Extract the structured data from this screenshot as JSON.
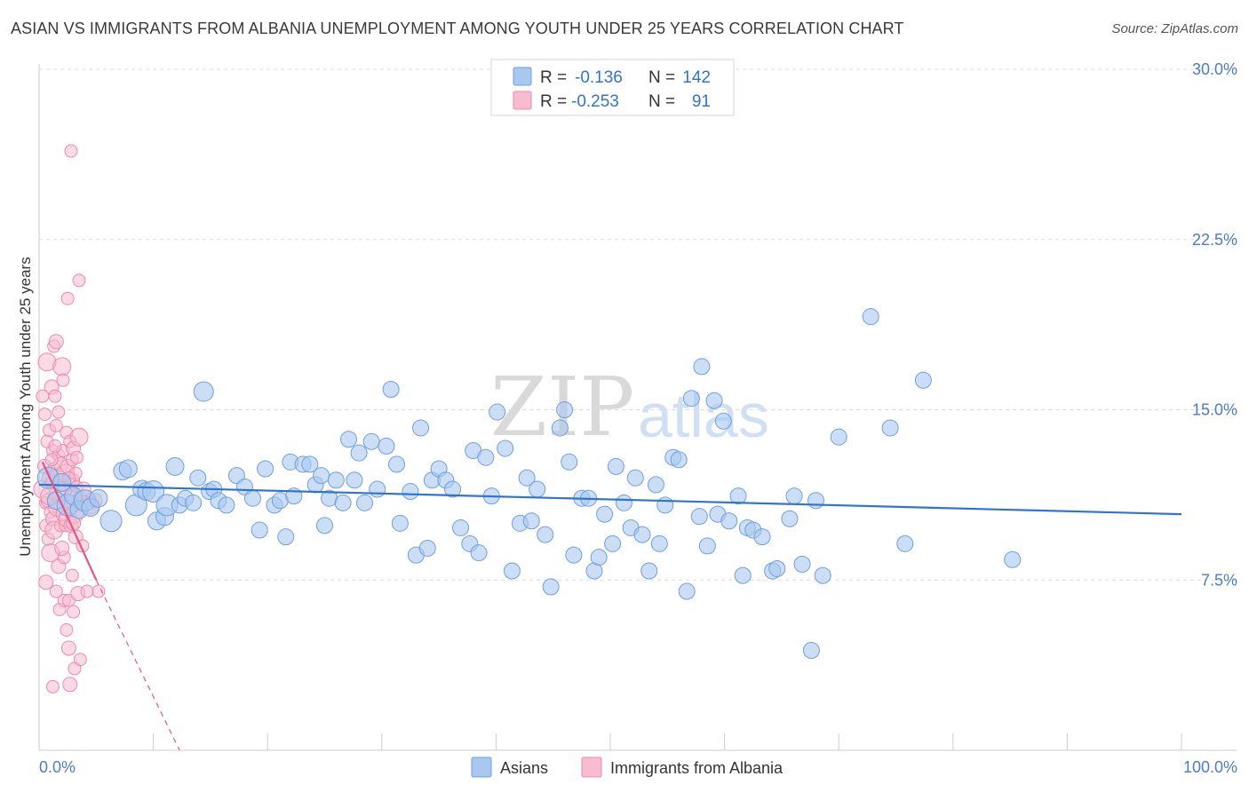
{
  "title": "ASIAN VS IMMIGRANTS FROM ALBANIA UNEMPLOYMENT AMONG YOUTH UNDER 25 YEARS CORRELATION CHART",
  "source": "Source: ZipAtlas.com",
  "watermark": {
    "zip": "ZIP",
    "atlas": "atlas"
  },
  "colors": {
    "asians_fill": "#a9c8f0",
    "asians_stroke": "#6e9fe0",
    "asians_line": "#2f74d0",
    "albania_fill": "#f8bcd0",
    "albania_stroke": "#ec8aaa",
    "albania_line": "#e0577f",
    "grid": "#dddddd",
    "label": "#4a7cc9"
  },
  "legend": {
    "rows": [
      {
        "r_label": "R =",
        "r_value": "-0.136",
        "n_label": "N =",
        "n_value": "142"
      },
      {
        "r_label": "R =",
        "r_value": "-0.253",
        "n_label": "N =",
        "n_value": "91"
      }
    ]
  },
  "bottom_legend": [
    "Asians",
    "Immigrants from Albania"
  ],
  "chart_data": {
    "type": "scatter",
    "title": "ASIAN VS IMMIGRANTS FROM ALBANIA UNEMPLOYMENT AMONG YOUTH UNDER 25 YEARS CORRELATION CHART",
    "xlabel": "",
    "ylabel": "Unemployment Among Youth under 25 years",
    "xlim": [
      0,
      100
    ],
    "ylim": [
      0,
      30
    ],
    "x_tick_labels": [
      "0.0%",
      "100.0%"
    ],
    "y_ticks": [
      7.5,
      15.0,
      22.5,
      30.0
    ],
    "y_tick_labels": [
      "7.5%",
      "15.0%",
      "22.5%",
      "30.0%"
    ],
    "grid": true,
    "series": [
      {
        "name": "Asians",
        "r": -0.136,
        "n": 142,
        "trend": {
          "x0": 0,
          "y0": 11.7,
          "x1": 100,
          "y1": 10.4
        },
        "points": [
          [
            0.8,
            12.0
          ],
          [
            1.5,
            11.0
          ],
          [
            2.0,
            11.8
          ],
          [
            2.5,
            10.8
          ],
          [
            3.0,
            11.2
          ],
          [
            3.5,
            10.6
          ],
          [
            4.0,
            11.0
          ],
          [
            4.5,
            10.7
          ],
          [
            5.2,
            11.1
          ],
          [
            6.3,
            10.1
          ],
          [
            7.3,
            12.3
          ],
          [
            7.8,
            12.4
          ],
          [
            8.5,
            10.8
          ],
          [
            9.0,
            11.5
          ],
          [
            9.4,
            11.4
          ],
          [
            10.0,
            11.4
          ],
          [
            10.3,
            10.1
          ],
          [
            11.0,
            10.3
          ],
          [
            11.2,
            10.8
          ],
          [
            11.9,
            12.5
          ],
          [
            12.3,
            10.8
          ],
          [
            12.8,
            11.1
          ],
          [
            13.5,
            10.9
          ],
          [
            13.9,
            12.0
          ],
          [
            14.4,
            15.8
          ],
          [
            14.9,
            11.4
          ],
          [
            15.3,
            11.5
          ],
          [
            15.7,
            11.0
          ],
          [
            16.4,
            10.8
          ],
          [
            17.3,
            12.1
          ],
          [
            18.0,
            11.6
          ],
          [
            18.7,
            11.1
          ],
          [
            19.3,
            9.7
          ],
          [
            19.8,
            12.4
          ],
          [
            20.6,
            10.8
          ],
          [
            21.1,
            11.0
          ],
          [
            21.6,
            9.4
          ],
          [
            22.0,
            12.7
          ],
          [
            22.3,
            11.2
          ],
          [
            23.1,
            12.6
          ],
          [
            23.7,
            12.6
          ],
          [
            24.2,
            11.7
          ],
          [
            24.7,
            12.1
          ],
          [
            25.0,
            9.9
          ],
          [
            25.4,
            11.1
          ],
          [
            26.0,
            11.9
          ],
          [
            26.6,
            10.9
          ],
          [
            27.1,
            13.7
          ],
          [
            27.6,
            11.9
          ],
          [
            28.0,
            13.1
          ],
          [
            28.5,
            10.9
          ],
          [
            29.1,
            13.6
          ],
          [
            29.6,
            11.5
          ],
          [
            30.4,
            13.4
          ],
          [
            30.8,
            15.9
          ],
          [
            31.3,
            12.6
          ],
          [
            31.6,
            10.0
          ],
          [
            32.5,
            11.4
          ],
          [
            33.0,
            8.6
          ],
          [
            33.4,
            14.2
          ],
          [
            34.0,
            8.9
          ],
          [
            34.4,
            11.9
          ],
          [
            35.0,
            12.4
          ],
          [
            35.6,
            11.9
          ],
          [
            36.2,
            11.5
          ],
          [
            36.9,
            9.8
          ],
          [
            37.7,
            9.1
          ],
          [
            38.0,
            13.2
          ],
          [
            38.5,
            8.7
          ],
          [
            39.1,
            12.9
          ],
          [
            39.6,
            11.2
          ],
          [
            40.1,
            14.9
          ],
          [
            40.8,
            13.3
          ],
          [
            41.4,
            7.9
          ],
          [
            42.1,
            10.0
          ],
          [
            42.7,
            12.0
          ],
          [
            43.1,
            10.1
          ],
          [
            43.6,
            11.5
          ],
          [
            44.3,
            9.5
          ],
          [
            44.8,
            7.2
          ],
          [
            45.6,
            14.2
          ],
          [
            46.0,
            15.0
          ],
          [
            46.4,
            12.7
          ],
          [
            46.8,
            8.6
          ],
          [
            47.5,
            11.1
          ],
          [
            48.1,
            11.1
          ],
          [
            48.6,
            7.9
          ],
          [
            49.0,
            8.5
          ],
          [
            49.5,
            10.4
          ],
          [
            50.2,
            9.1
          ],
          [
            50.5,
            12.5
          ],
          [
            51.2,
            10.9
          ],
          [
            51.8,
            9.8
          ],
          [
            52.2,
            12.0
          ],
          [
            52.8,
            9.5
          ],
          [
            53.4,
            7.9
          ],
          [
            54.0,
            11.7
          ],
          [
            54.3,
            9.1
          ],
          [
            54.8,
            10.8
          ],
          [
            55.5,
            12.9
          ],
          [
            56.0,
            12.8
          ],
          [
            56.7,
            7.0
          ],
          [
            57.1,
            15.5
          ],
          [
            57.8,
            10.3
          ],
          [
            58.0,
            16.9
          ],
          [
            58.5,
            9.0
          ],
          [
            59.1,
            15.4
          ],
          [
            59.4,
            10.4
          ],
          [
            59.9,
            14.5
          ],
          [
            60.4,
            10.1
          ],
          [
            61.2,
            11.2
          ],
          [
            61.6,
            7.7
          ],
          [
            62.0,
            9.8
          ],
          [
            62.5,
            9.7
          ],
          [
            63.3,
            9.4
          ],
          [
            64.2,
            7.9
          ],
          [
            64.6,
            8.0
          ],
          [
            65.7,
            10.2
          ],
          [
            66.1,
            11.2
          ],
          [
            66.8,
            8.2
          ],
          [
            67.6,
            4.4
          ],
          [
            68.0,
            11.0
          ],
          [
            68.6,
            7.7
          ],
          [
            70.0,
            13.8
          ],
          [
            72.8,
            19.1
          ],
          [
            74.5,
            14.2
          ],
          [
            75.8,
            9.1
          ],
          [
            77.4,
            16.3
          ],
          [
            85.2,
            8.4
          ]
        ]
      },
      {
        "name": "Immigrants from Albania",
        "r": -0.253,
        "n": 91,
        "trend": {
          "x0": 0.3,
          "y0": 12.7,
          "x1": 5.0,
          "y1": 7.5,
          "dash_x1": 12.3,
          "dash_y1": 0
        },
        "points": [
          [
            0.3,
            11.5
          ],
          [
            0.3,
            15.6
          ],
          [
            0.5,
            14.8
          ],
          [
            0.5,
            12.5
          ],
          [
            0.6,
            10.9
          ],
          [
            0.6,
            9.9
          ],
          [
            0.6,
            7.4
          ],
          [
            0.7,
            17.1
          ],
          [
            0.7,
            13.6
          ],
          [
            0.8,
            11.0
          ],
          [
            0.8,
            9.3
          ],
          [
            0.9,
            14.1
          ],
          [
            0.9,
            12.0
          ],
          [
            1.0,
            10.5
          ],
          [
            1.0,
            8.7
          ],
          [
            1.1,
            16.0
          ],
          [
            1.1,
            11.8
          ],
          [
            1.2,
            13.2
          ],
          [
            1.2,
            10.2
          ],
          [
            1.3,
            17.8
          ],
          [
            1.3,
            12.4
          ],
          [
            1.3,
            9.7
          ],
          [
            1.4,
            15.6
          ],
          [
            1.4,
            11.3
          ],
          [
            1.5,
            18.0
          ],
          [
            1.5,
            14.3
          ],
          [
            1.5,
            7.0
          ],
          [
            1.6,
            12.1
          ],
          [
            1.6,
            10.7
          ],
          [
            1.7,
            13.0
          ],
          [
            1.7,
            8.1
          ],
          [
            1.8,
            11.9
          ],
          [
            1.8,
            6.2
          ],
          [
            1.9,
            12.6
          ],
          [
            1.9,
            9.9
          ],
          [
            2.0,
            16.9
          ],
          [
            2.0,
            11.5
          ],
          [
            2.1,
            16.3
          ],
          [
            2.1,
            13.2
          ],
          [
            2.1,
            10.4
          ],
          [
            2.2,
            8.5
          ],
          [
            2.2,
            6.6
          ],
          [
            2.3,
            12.2
          ],
          [
            2.3,
            9.9
          ],
          [
            2.4,
            14.0
          ],
          [
            2.4,
            11.0
          ],
          [
            2.4,
            5.3
          ],
          [
            2.5,
            19.9
          ],
          [
            2.5,
            12.5
          ],
          [
            2.5,
            10.2
          ],
          [
            2.6,
            6.6
          ],
          [
            2.6,
            4.5
          ],
          [
            2.7,
            13.6
          ],
          [
            2.7,
            11.7
          ],
          [
            2.7,
            2.9
          ],
          [
            2.8,
            26.4
          ],
          [
            2.8,
            10.8
          ],
          [
            2.8,
            9.9
          ],
          [
            2.9,
            12.8
          ],
          [
            2.9,
            11.2
          ],
          [
            3.0,
            13.3
          ],
          [
            3.0,
            11.9
          ],
          [
            3.0,
            6.1
          ],
          [
            3.1,
            10.4
          ],
          [
            3.1,
            3.6
          ],
          [
            3.2,
            12.2
          ],
          [
            3.2,
            9.4
          ],
          [
            3.3,
            11.6
          ],
          [
            3.4,
            10.9
          ],
          [
            3.4,
            6.9
          ],
          [
            3.5,
            13.8
          ],
          [
            3.5,
            20.7
          ],
          [
            3.6,
            11.1
          ],
          [
            3.6,
            4.0
          ],
          [
            3.8,
            9.0
          ],
          [
            3.9,
            11.5
          ],
          [
            4.2,
            7.0
          ],
          [
            4.5,
            10.8
          ],
          [
            4.9,
            11.0
          ],
          [
            5.2,
            7.0
          ],
          [
            1.2,
            2.8
          ],
          [
            2.0,
            8.9
          ],
          [
            2.6,
            12.0
          ],
          [
            1.4,
            13.4
          ],
          [
            0.9,
            11.2
          ],
          [
            1.7,
            14.9
          ],
          [
            3.3,
            12.9
          ],
          [
            2.2,
            11.4
          ],
          [
            1.1,
            12.8
          ],
          [
            2.9,
            7.7
          ],
          [
            3.0,
            10.0
          ]
        ]
      }
    ]
  }
}
